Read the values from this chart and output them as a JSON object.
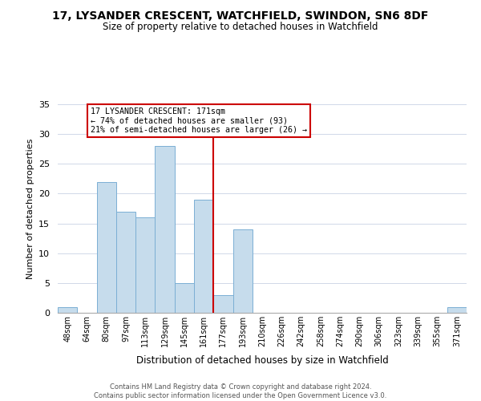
{
  "title": "17, LYSANDER CRESCENT, WATCHFIELD, SWINDON, SN6 8DF",
  "subtitle": "Size of property relative to detached houses in Watchfield",
  "xlabel": "Distribution of detached houses by size in Watchfield",
  "ylabel": "Number of detached properties",
  "bin_labels": [
    "48sqm",
    "64sqm",
    "80sqm",
    "97sqm",
    "113sqm",
    "129sqm",
    "145sqm",
    "161sqm",
    "177sqm",
    "193sqm",
    "210sqm",
    "226sqm",
    "242sqm",
    "258sqm",
    "274sqm",
    "290sqm",
    "306sqm",
    "323sqm",
    "339sqm",
    "355sqm",
    "371sqm"
  ],
  "bin_values": [
    1,
    0,
    22,
    17,
    16,
    28,
    5,
    19,
    3,
    14,
    0,
    0,
    0,
    0,
    0,
    0,
    0,
    0,
    0,
    0,
    1
  ],
  "property_line_bin_index": 7.5,
  "bar_color": "#c6dcec",
  "bar_edge_color": "#7bafd4",
  "highlight_color": "#cc0000",
  "annotation_title": "17 LYSANDER CRESCENT: 171sqm",
  "annotation_line1": "← 74% of detached houses are smaller (93)",
  "annotation_line2": "21% of semi-detached houses are larger (26) →",
  "ylim": [
    0,
    35
  ],
  "yticks": [
    0,
    5,
    10,
    15,
    20,
    25,
    30,
    35
  ],
  "footnote1": "Contains HM Land Registry data © Crown copyright and database right 2024.",
  "footnote2": "Contains public sector information licensed under the Open Government Licence v3.0."
}
